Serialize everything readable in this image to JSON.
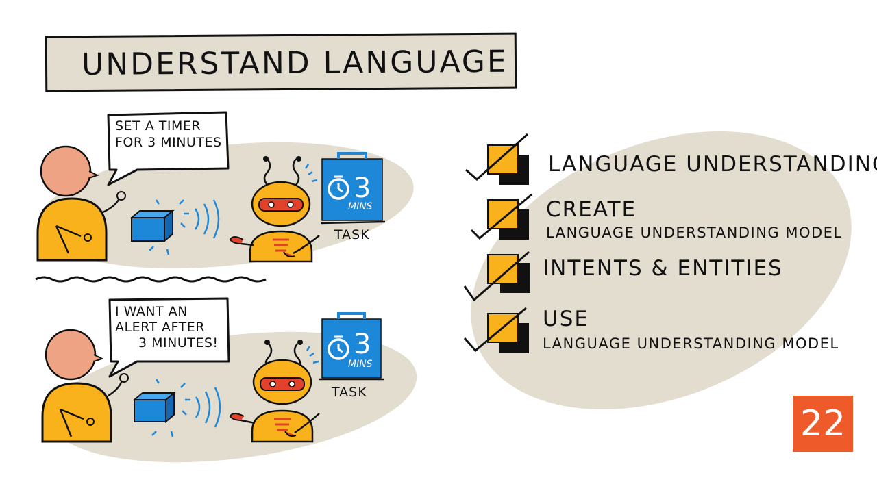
{
  "title": "UNDERSTAND LANGUAGE",
  "scene_top": {
    "speech_lines": [
      "SET A TIMER",
      "FOR 3 MINUTES"
    ],
    "timer_number": "3",
    "timer_unit": "MINS",
    "task_label": "TASK"
  },
  "scene_bottom": {
    "speech_lines": [
      "I WANT AN",
      "ALERT AFTER",
      "3 MINUTES!"
    ],
    "timer_number": "3",
    "timer_unit": "MINS",
    "task_label": "TASK"
  },
  "checklist": [
    {
      "title": "LANGUAGE UNDERSTANDING",
      "subtitle": ""
    },
    {
      "title": "CREATE",
      "subtitle": "LANGUAGE UNDERSTANDING MODEL"
    },
    {
      "title": "INTENTS & ENTITIES",
      "subtitle": ""
    },
    {
      "title": "USE",
      "subtitle": "LANGUAGE UNDERSTANDING MODEL"
    }
  ],
  "lesson_number": "22",
  "colors": {
    "blob": "#e3ddd0",
    "orange": "#f9b21b",
    "skin": "#eea484",
    "blue": "#1e88d8",
    "badge": "#ef5a2a",
    "robot_red": "#e2412c"
  }
}
